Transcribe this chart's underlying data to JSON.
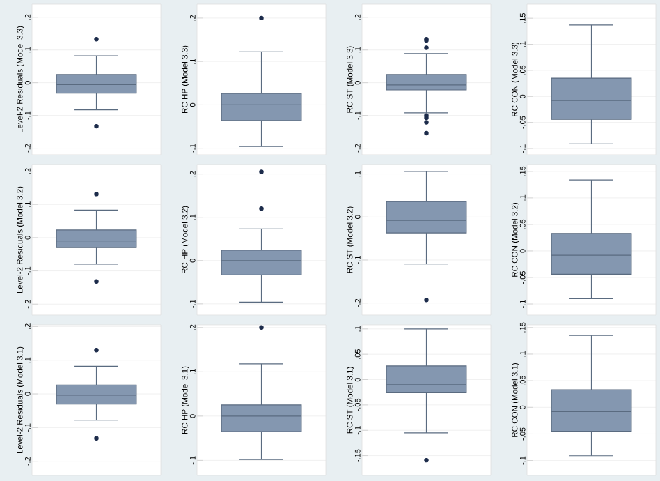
{
  "chart_data": [
    {
      "type": "box",
      "ylabel": "Level-2 Residuals (Model 3.3)",
      "categories": [
        null
      ],
      "color": "#8497b0",
      "grid": "y",
      "tick_labels": "y",
      "ylim": [
        -0.22,
        0.24
      ],
      "yticks": [
        {
          "value": -0.2,
          "label": "-.2"
        },
        {
          "value": -0.1,
          "label": "-.1"
        },
        0,
        {
          "value": 0.1,
          "label": ".1"
        },
        {
          "value": 0.2,
          "label": ".2"
        }
      ],
      "boxes": [
        {
          "low": -0.083,
          "q1": -0.032,
          "median": -0.006,
          "q3": 0.025,
          "high": 0.082,
          "outliers": [
            0.133,
            -0.133
          ]
        }
      ]
    },
    {
      "type": "box",
      "ylabel": "RC HP (Model 3.3)",
      "categories": [
        null
      ],
      "color": "#8497b0",
      "grid": "y",
      "tick_labels": "y",
      "ylim": [
        -0.115,
        0.232
      ],
      "yticks": [
        {
          "value": -0.1,
          "label": "-.1"
        },
        0,
        {
          "value": 0.1,
          "label": ".1"
        },
        {
          "value": 0.2,
          "label": ".2"
        }
      ],
      "boxes": [
        {
          "low": -0.096,
          "q1": -0.036,
          "median": 0,
          "q3": 0.026,
          "high": 0.122,
          "outliers": [
            0.2
          ]
        }
      ]
    },
    {
      "type": "box",
      "ylabel": "RC ST (Model 3.3)",
      "categories": [
        null
      ],
      "color": "#8497b0",
      "grid": "y",
      "tick_labels": "y",
      "ylim": [
        -0.22,
        0.24
      ],
      "yticks": [
        {
          "value": -0.2,
          "label": "-.2"
        },
        {
          "value": -0.1,
          "label": "-.1"
        },
        0,
        {
          "value": 0.1,
          "label": ".1"
        },
        {
          "value": 0.2,
          "label": ".2"
        }
      ],
      "boxes": [
        {
          "low": -0.092,
          "q1": -0.022,
          "median": -0.007,
          "q3": 0.025,
          "high": 0.089,
          "outliers": [
            0.133,
            0.129,
            0.107,
            -0.1,
            -0.107,
            -0.121,
            -0.154
          ]
        }
      ]
    },
    {
      "type": "box",
      "ylabel": "RC CON (Model 3.3)",
      "categories": [
        null
      ],
      "color": "#8497b0",
      "grid": "y",
      "tick_labels": "y",
      "ylim": [
        -0.112,
        0.177
      ],
      "yticks": [
        {
          "value": -0.1,
          "label": "-.1"
        },
        {
          "value": -0.05,
          "label": "-.05"
        },
        0,
        {
          "value": 0.05,
          "label": ".05"
        },
        {
          "value": 0.1,
          "label": ".1"
        },
        {
          "value": 0.15,
          "label": ".15"
        }
      ],
      "boxes": [
        {
          "low": -0.091,
          "q1": -0.044,
          "median": -0.008,
          "q3": 0.035,
          "high": 0.137
        }
      ]
    },
    {
      "type": "box",
      "ylabel": "Level-2 Residuals (Model 3.2)",
      "categories": [
        null
      ],
      "color": "#8497b0",
      "grid": "y",
      "tick_labels": "y",
      "ylim": [
        -0.233,
        0.22
      ],
      "yticks": [
        {
          "value": -0.2,
          "label": "-.2"
        },
        {
          "value": -0.1,
          "label": "-.1"
        },
        0,
        {
          "value": 0.1,
          "label": ".1"
        },
        {
          "value": 0.2,
          "label": ".2"
        }
      ],
      "boxes": [
        {
          "low": -0.08,
          "q1": -0.03,
          "median": -0.01,
          "q3": 0.023,
          "high": 0.083,
          "outliers": [
            0.131,
            -0.132
          ]
        }
      ]
    },
    {
      "type": "box",
      "ylabel": "RC HP (Model 3.2)",
      "categories": [
        null
      ],
      "color": "#8497b0",
      "grid": "y",
      "tick_labels": "y",
      "ylim": [
        -0.126,
        0.222
      ],
      "yticks": [
        {
          "value": -0.1,
          "label": "-.1"
        },
        0,
        {
          "value": 0.1,
          "label": ".1"
        },
        {
          "value": 0.2,
          "label": ".2"
        }
      ],
      "boxes": [
        {
          "low": -0.096,
          "q1": -0.033,
          "median": 0,
          "q3": 0.024,
          "high": 0.073,
          "outliers": [
            0.205,
            0.12
          ]
        }
      ]
    },
    {
      "type": "box",
      "ylabel": "RC ST (Model 3.2)",
      "categories": [
        null
      ],
      "color": "#8497b0",
      "grid": "y",
      "tick_labels": "y",
      "ylim": [
        -0.228,
        0.122
      ],
      "yticks": [
        {
          "value": -0.2,
          "label": "-.2"
        },
        {
          "value": -0.1,
          "label": "-.1"
        },
        0,
        {
          "value": 0.1,
          "label": ".1"
        }
      ],
      "boxes": [
        {
          "low": -0.109,
          "q1": -0.037,
          "median": -0.008,
          "q3": 0.036,
          "high": 0.106,
          "outliers": [
            -0.193
          ]
        }
      ]
    },
    {
      "type": "box",
      "ylabel": "RC CON (Model 3.2)",
      "categories": [
        null
      ],
      "color": "#8497b0",
      "grid": "y",
      "tick_labels": "y",
      "ylim": [
        -0.121,
        0.163
      ],
      "yticks": [
        {
          "value": -0.1,
          "label": "-.1"
        },
        {
          "value": -0.05,
          "label": "-.05"
        },
        0,
        {
          "value": 0.05,
          "label": ".05"
        },
        {
          "value": 0.1,
          "label": ".1"
        },
        {
          "value": 0.15,
          "label": ".15"
        }
      ],
      "boxes": [
        {
          "low": -0.09,
          "q1": -0.044,
          "median": -0.008,
          "q3": 0.033,
          "high": 0.134
        }
      ]
    },
    {
      "type": "box",
      "ylabel": "Level-2 Residuals (Model 3.1)",
      "categories": [
        null
      ],
      "color": "#8497b0",
      "grid": "y",
      "tick_labels": "y",
      "ylim": [
        -0.242,
        0.205
      ],
      "yticks": [
        {
          "value": -0.2,
          "label": "-.2"
        },
        {
          "value": -0.1,
          "label": "-.1"
        },
        0,
        {
          "value": 0.1,
          "label": ".1"
        },
        {
          "value": 0.2,
          "label": ".2"
        }
      ],
      "boxes": [
        {
          "low": -0.078,
          "q1": -0.03,
          "median": -0.004,
          "q3": 0.026,
          "high": 0.082,
          "outliers": [
            0.13,
            -0.132
          ]
        }
      ]
    },
    {
      "type": "box",
      "ylabel": "RC HP (Model 3.1)",
      "categories": [
        null
      ],
      "color": "#8497b0",
      "grid": "y",
      "tick_labels": "y",
      "ylim": [
        -0.134,
        0.206
      ],
      "yticks": [
        {
          "value": -0.1,
          "label": "-.1"
        },
        0,
        {
          "value": 0.1,
          "label": ".1"
        },
        {
          "value": 0.2,
          "label": ".2"
        }
      ],
      "boxes": [
        {
          "low": -0.098,
          "q1": -0.035,
          "median": 0,
          "q3": 0.025,
          "high": 0.118,
          "outliers": [
            0.2
          ]
        }
      ]
    },
    {
      "type": "box",
      "ylabel": "RC ST (Model 3.1)",
      "categories": [
        null
      ],
      "color": "#8497b0",
      "grid": "y",
      "tick_labels": "y",
      "ylim": [
        -0.189,
        0.108
      ],
      "yticks": [
        {
          "value": -0.15,
          "label": "-.15"
        },
        {
          "value": -0.1,
          "label": "-.1"
        },
        {
          "value": -0.05,
          "label": "-.05"
        },
        0,
        {
          "value": 0.05,
          "label": ".05"
        },
        {
          "value": 0.1,
          "label": ".1"
        }
      ],
      "boxes": [
        {
          "low": -0.105,
          "q1": -0.026,
          "median": -0.01,
          "q3": 0.027,
          "high": 0.1,
          "outliers": [
            -0.159
          ]
        }
      ]
    },
    {
      "type": "box",
      "ylabel": "RC CON (Model 3.1)",
      "categories": [
        null
      ],
      "color": "#8497b0",
      "grid": "y",
      "tick_labels": "y",
      "ylim": [
        -0.128,
        0.155
      ],
      "yticks": [
        {
          "value": -0.1,
          "label": "-.1"
        },
        {
          "value": -0.05,
          "label": "-.05"
        },
        0,
        {
          "value": 0.05,
          "label": ".05"
        },
        {
          "value": 0.1,
          "label": ".1"
        },
        {
          "value": 0.15,
          "label": ".15"
        }
      ],
      "boxes": [
        {
          "low": -0.091,
          "q1": -0.045,
          "median": -0.008,
          "q3": 0.033,
          "high": 0.135
        }
      ]
    }
  ]
}
